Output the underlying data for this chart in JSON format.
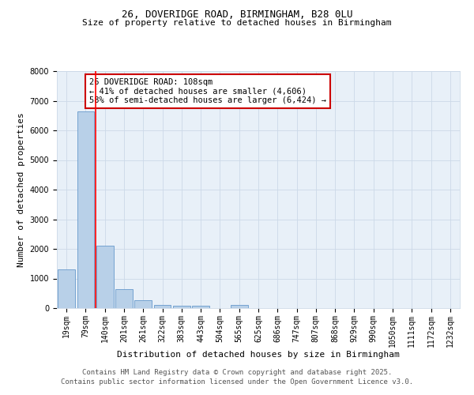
{
  "title_line1": "26, DOVERIDGE ROAD, BIRMINGHAM, B28 0LU",
  "title_line2": "Size of property relative to detached houses in Birmingham",
  "xlabel": "Distribution of detached houses by size in Birmingham",
  "ylabel": "Number of detached properties",
  "annotation_title": "26 DOVERIDGE ROAD: 108sqm",
  "annotation_line2": "← 41% of detached houses are smaller (4,606)",
  "annotation_line3": "58% of semi-detached houses are larger (6,424) →",
  "footer_line1": "Contains HM Land Registry data © Crown copyright and database right 2025.",
  "footer_line2": "Contains public sector information licensed under the Open Government Licence v3.0.",
  "categories": [
    "19sqm",
    "79sqm",
    "140sqm",
    "201sqm",
    "261sqm",
    "322sqm",
    "383sqm",
    "443sqm",
    "504sqm",
    "565sqm",
    "625sqm",
    "686sqm",
    "747sqm",
    "807sqm",
    "868sqm",
    "929sqm",
    "990sqm",
    "1050sqm",
    "1111sqm",
    "1172sqm",
    "1232sqm"
  ],
  "values": [
    1300,
    6650,
    2100,
    650,
    270,
    120,
    80,
    70,
    0,
    100,
    0,
    0,
    0,
    0,
    0,
    0,
    0,
    0,
    0,
    0,
    0
  ],
  "bar_color": "#b8d0e8",
  "bar_edge_color": "#6699cc",
  "red_line_x": 1.5,
  "ylim": [
    0,
    8000
  ],
  "yticks": [
    0,
    1000,
    2000,
    3000,
    4000,
    5000,
    6000,
    7000,
    8000
  ],
  "grid_color": "#ccd9e8",
  "background_color": "#e8f0f8",
  "annotation_box_color": "#ffffff",
  "annotation_box_edge_color": "#cc0000",
  "title_fontsize": 9,
  "subtitle_fontsize": 8,
  "axis_label_fontsize": 8,
  "tick_fontsize": 7,
  "annotation_fontsize": 7.5,
  "footer_fontsize": 6.5
}
